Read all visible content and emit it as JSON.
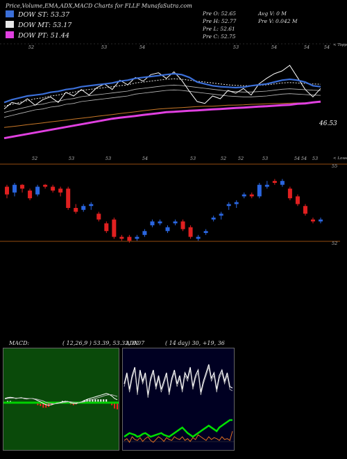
{
  "header": {
    "title": "Price,Volume,EMA,ADX,MACD Charts for FLLF MunafaSutra.com"
  },
  "legend": [
    {
      "label": "DOW ST: 53.37",
      "color": "#3b6fd8"
    },
    {
      "label": "DOW MT: 53.17",
      "color": "#e8e8e8"
    },
    {
      "label": "DOW PT: 51.44",
      "color": "#e040e0"
    }
  ],
  "ohlc": {
    "open": "Pre   O: 52.65",
    "high": "Pre   H: 52.77",
    "low": "Pre   L: 52.61",
    "close": "Pre   C: 52.75",
    "avg_volume": "Avg V: 0   M",
    "prev_volume": "Pre   V: 0.042   M"
  },
  "ema_panel": {
    "top_tag": "< Topp",
    "low_tag": "< Lowes",
    "price_label": "46.53",
    "top_ticks": [
      "52",
      "53",
      "54",
      "53",
      "54",
      "54",
      "54"
    ],
    "low_ticks": [
      "52",
      "53",
      "53",
      "54",
      "53",
      "52",
      "52",
      "53",
      "54",
      "54",
      "53"
    ]
  },
  "candles_panel": {
    "upper_level": "55",
    "lower_level": "52"
  },
  "macd": {
    "label": "MACD:",
    "params": "( 12,26,9 ) 53.39,  53.32,  0.07"
  },
  "adx": {
    "label": "ADX",
    "params": "( 14  day) 30,  +19,  36"
  },
  "chart_data": {
    "type": "candlestick",
    "candles": [
      {
        "o": 53.45,
        "h": 53.5,
        "l": 53.15,
        "c": 53.25,
        "dir": "down"
      },
      {
        "o": 53.3,
        "h": 53.55,
        "l": 53.2,
        "c": 53.5,
        "dir": "up"
      },
      {
        "o": 53.5,
        "h": 53.52,
        "l": 53.3,
        "c": 53.4,
        "dir": "down"
      },
      {
        "o": 53.35,
        "h": 53.4,
        "l": 53.1,
        "c": 53.15,
        "dir": "down"
      },
      {
        "o": 53.25,
        "h": 53.5,
        "l": 53.2,
        "c": 53.45,
        "dir": "up"
      },
      {
        "o": 53.5,
        "h": 53.52,
        "l": 53.4,
        "c": 53.45,
        "dir": "down"
      },
      {
        "o": 53.45,
        "h": 53.5,
        "l": 53.3,
        "c": 53.35,
        "dir": "down"
      },
      {
        "o": 53.4,
        "h": 53.45,
        "l": 53.2,
        "c": 53.3,
        "dir": "down"
      },
      {
        "o": 53.4,
        "h": 53.45,
        "l": 52.85,
        "c": 52.9,
        "dir": "down"
      },
      {
        "o": 52.9,
        "h": 53.0,
        "l": 52.75,
        "c": 52.8,
        "dir": "down"
      },
      {
        "o": 52.85,
        "h": 53.0,
        "l": 52.8,
        "c": 52.95,
        "dir": "up"
      },
      {
        "o": 53.0,
        "h": 53.05,
        "l": 52.85,
        "c": 52.95,
        "dir": "up"
      },
      {
        "o": 52.75,
        "h": 52.8,
        "l": 52.55,
        "c": 52.6,
        "dir": "down"
      },
      {
        "o": 52.5,
        "h": 52.55,
        "l": 52.25,
        "c": 52.3,
        "dir": "down"
      },
      {
        "o": 52.6,
        "h": 52.65,
        "l": 52.1,
        "c": 52.15,
        "dir": "down"
      },
      {
        "o": 52.15,
        "h": 52.2,
        "l": 52.05,
        "c": 52.1,
        "dir": "down"
      },
      {
        "o": 52.15,
        "h": 52.2,
        "l": 52.0,
        "c": 52.05,
        "dir": "down"
      },
      {
        "o": 52.1,
        "h": 52.2,
        "l": 52.05,
        "c": 52.15,
        "dir": "up"
      },
      {
        "o": 52.2,
        "h": 52.35,
        "l": 52.15,
        "c": 52.3,
        "dir": "up"
      },
      {
        "o": 52.45,
        "h": 52.6,
        "l": 52.4,
        "c": 52.55,
        "dir": "up"
      },
      {
        "o": 52.5,
        "h": 52.6,
        "l": 52.45,
        "c": 52.55,
        "dir": "up"
      },
      {
        "o": 52.3,
        "h": 52.45,
        "l": 52.25,
        "c": 52.4,
        "dir": "up"
      },
      {
        "o": 52.5,
        "h": 52.6,
        "l": 52.45,
        "c": 52.55,
        "dir": "up"
      },
      {
        "o": 52.55,
        "h": 52.6,
        "l": 52.3,
        "c": 52.35,
        "dir": "down"
      },
      {
        "o": 52.4,
        "h": 52.45,
        "l": 52.1,
        "c": 52.15,
        "dir": "down"
      },
      {
        "o": 52.15,
        "h": 52.2,
        "l": 52.05,
        "c": 52.1,
        "dir": "up"
      },
      {
        "o": 52.25,
        "h": 52.35,
        "l": 52.2,
        "c": 52.3,
        "dir": "up"
      },
      {
        "o": 52.6,
        "h": 52.7,
        "l": 52.55,
        "c": 52.65,
        "dir": "up"
      },
      {
        "o": 52.75,
        "h": 52.8,
        "l": 52.6,
        "c": 52.7,
        "dir": "up"
      },
      {
        "o": 53.0,
        "h": 53.05,
        "l": 52.85,
        "c": 52.95,
        "dir": "up"
      },
      {
        "o": 53.05,
        "h": 53.1,
        "l": 52.9,
        "c": 53.0,
        "dir": "up"
      },
      {
        "o": 53.2,
        "h": 53.3,
        "l": 53.15,
        "c": 53.25,
        "dir": "up"
      },
      {
        "o": 53.25,
        "h": 53.3,
        "l": 53.15,
        "c": 53.2,
        "dir": "down"
      },
      {
        "o": 53.2,
        "h": 53.55,
        "l": 53.15,
        "c": 53.5,
        "dir": "up"
      },
      {
        "o": 53.45,
        "h": 53.6,
        "l": 53.4,
        "c": 53.5,
        "dir": "up"
      },
      {
        "o": 53.6,
        "h": 53.65,
        "l": 53.5,
        "c": 53.55,
        "dir": "down"
      },
      {
        "o": 53.6,
        "h": 53.65,
        "l": 53.45,
        "c": 53.5,
        "dir": "up"
      },
      {
        "o": 53.4,
        "h": 53.45,
        "l": 53.1,
        "c": 53.15,
        "dir": "down"
      },
      {
        "o": 53.2,
        "h": 53.25,
        "l": 52.95,
        "c": 53.0,
        "dir": "down"
      },
      {
        "o": 52.95,
        "h": 53.0,
        "l": 52.7,
        "c": 52.75,
        "dir": "down"
      },
      {
        "o": 52.6,
        "h": 52.65,
        "l": 52.5,
        "c": 52.55,
        "dir": "down"
      },
      {
        "o": 52.55,
        "h": 52.65,
        "l": 52.5,
        "c": 52.6,
        "dir": "up"
      }
    ],
    "ema_short": [
      51.2,
      51.5,
      51.7,
      51.9,
      52.0,
      52.1,
      52.3,
      52.4,
      52.6,
      52.7,
      52.9,
      53.0,
      53.1,
      53.2,
      53.3,
      53.5,
      53.6,
      53.8,
      53.9,
      54.0,
      54.1,
      54.2,
      54.3,
      54.2,
      53.9,
      53.4,
      53.2,
      53.0,
      52.9,
      52.85,
      52.8,
      52.85,
      53.0,
      53.1,
      53.2,
      53.4,
      53.6,
      53.7,
      53.6,
      53.4,
      53.0,
      52.9
    ],
    "ema_mid": [
      50.8,
      51.0,
      51.2,
      51.4,
      51.6,
      51.7,
      51.9,
      52.0,
      52.2,
      52.3,
      52.5,
      52.6,
      52.7,
      52.8,
      52.9,
      53.0,
      53.1,
      53.3,
      53.4,
      53.5,
      53.6,
      53.7,
      53.75,
      53.7,
      53.6,
      53.5,
      53.4,
      53.3,
      53.2,
      53.1,
      53.05,
      53.0,
      53.0,
      53.05,
      53.1,
      53.2,
      53.3,
      53.35,
      53.3,
      53.25,
      53.2,
      53.17
    ],
    "ema_long": [
      50.3,
      50.4,
      50.5,
      50.6,
      50.7,
      50.8,
      50.9,
      51.0,
      51.1,
      51.2,
      51.3,
      51.4,
      51.5,
      51.6,
      51.7,
      51.8,
      51.9,
      52.0,
      52.1,
      52.2,
      52.3,
      52.35,
      52.4,
      52.45,
      52.5,
      52.55,
      52.6,
      52.6,
      52.65,
      52.7,
      52.72,
      52.75,
      52.8,
      52.82,
      52.85,
      52.88,
      52.9,
      52.92,
      52.95,
      52.97,
      53.0,
      53.02
    ],
    "pt_line": [
      47.5,
      47.65,
      47.8,
      47.95,
      48.1,
      48.25,
      48.4,
      48.55,
      48.7,
      48.85,
      49.0,
      49.15,
      49.3,
      49.45,
      49.6,
      49.7,
      49.8,
      49.9,
      50.0,
      50.1,
      50.2,
      50.3,
      50.35,
      50.4,
      50.45,
      50.5,
      50.55,
      50.6,
      50.65,
      50.7,
      50.75,
      50.8,
      50.85,
      50.9,
      50.95,
      51.0,
      51.05,
      51.1,
      51.2,
      51.25,
      51.35,
      51.44
    ],
    "close_line": [
      50.5,
      51.2,
      51.0,
      51.6,
      50.9,
      51.5,
      51.8,
      51.2,
      52.3,
      51.9,
      52.6,
      52.0,
      52.8,
      53.2,
      52.6,
      53.6,
      53.1,
      53.9,
      53.5,
      54.2,
      54.4,
      53.8,
      54.5,
      53.6,
      52.4,
      51.3,
      51.1,
      51.9,
      51.6,
      52.5,
      52.2,
      52.7,
      52.0,
      53.2,
      53.8,
      54.3,
      54.6,
      55.2,
      53.9,
      52.6,
      51.8,
      52.7
    ],
    "ylim_ema": [
      45,
      57
    ],
    "ylim_candles": [
      51.8,
      54.0
    ],
    "macd_line": [
      0.1,
      0.12,
      0.13,
      0.12,
      0.1,
      0.11,
      0.12,
      0.1,
      0.09,
      0.1,
      0.1,
      0.08,
      0.05,
      0.02,
      -0.02,
      -0.05,
      -0.06,
      -0.05,
      -0.03,
      -0.01,
      0.0,
      0.02,
      0.03,
      0.03,
      0.0,
      -0.02,
      -0.02,
      0.0,
      0.02,
      0.05,
      0.08,
      0.1,
      0.12,
      0.14,
      0.16,
      0.18,
      0.2,
      0.22,
      0.2,
      0.16,
      0.1,
      0.07
    ],
    "macd_signal": [
      0.09,
      0.1,
      0.11,
      0.11,
      0.11,
      0.11,
      0.11,
      0.11,
      0.1,
      0.1,
      0.1,
      0.09,
      0.08,
      0.06,
      0.04,
      0.01,
      -0.01,
      -0.02,
      -0.03,
      -0.02,
      -0.01,
      0.0,
      0.01,
      0.02,
      0.02,
      0.01,
      0.0,
      0.0,
      0.01,
      0.02,
      0.04,
      0.06,
      0.08,
      0.1,
      0.12,
      0.14,
      0.16,
      0.18,
      0.19,
      0.19,
      0.17,
      0.15
    ],
    "adx_di_plus": [
      22,
      30,
      18,
      28,
      34,
      16,
      32,
      24,
      30,
      14,
      26,
      32,
      20,
      28,
      18,
      24,
      30,
      16,
      26,
      32,
      22,
      28,
      18,
      30,
      26,
      34,
      20,
      28,
      32,
      16,
      24,
      30,
      36,
      26,
      30,
      18,
      28,
      32,
      24,
      30,
      20,
      19
    ],
    "adx_di_minus": [
      8,
      10,
      6,
      12,
      9,
      8,
      11,
      7,
      10,
      12,
      8,
      6,
      9,
      12,
      10,
      7,
      11,
      9,
      8,
      12,
      10,
      9,
      12,
      8,
      10,
      7,
      11,
      9,
      14,
      12,
      10,
      8,
      12,
      9,
      11,
      10,
      8,
      12,
      9,
      10,
      8,
      36
    ],
    "adx_line": [
      12,
      14,
      16,
      15,
      14,
      12,
      13,
      15,
      16,
      14,
      12,
      13,
      14,
      15,
      16,
      14,
      13,
      12,
      14,
      16,
      18,
      20,
      22,
      19,
      16,
      14,
      12,
      14,
      16,
      18,
      20,
      22,
      24,
      22,
      20,
      18,
      22,
      24,
      26,
      28,
      30,
      30
    ]
  }
}
